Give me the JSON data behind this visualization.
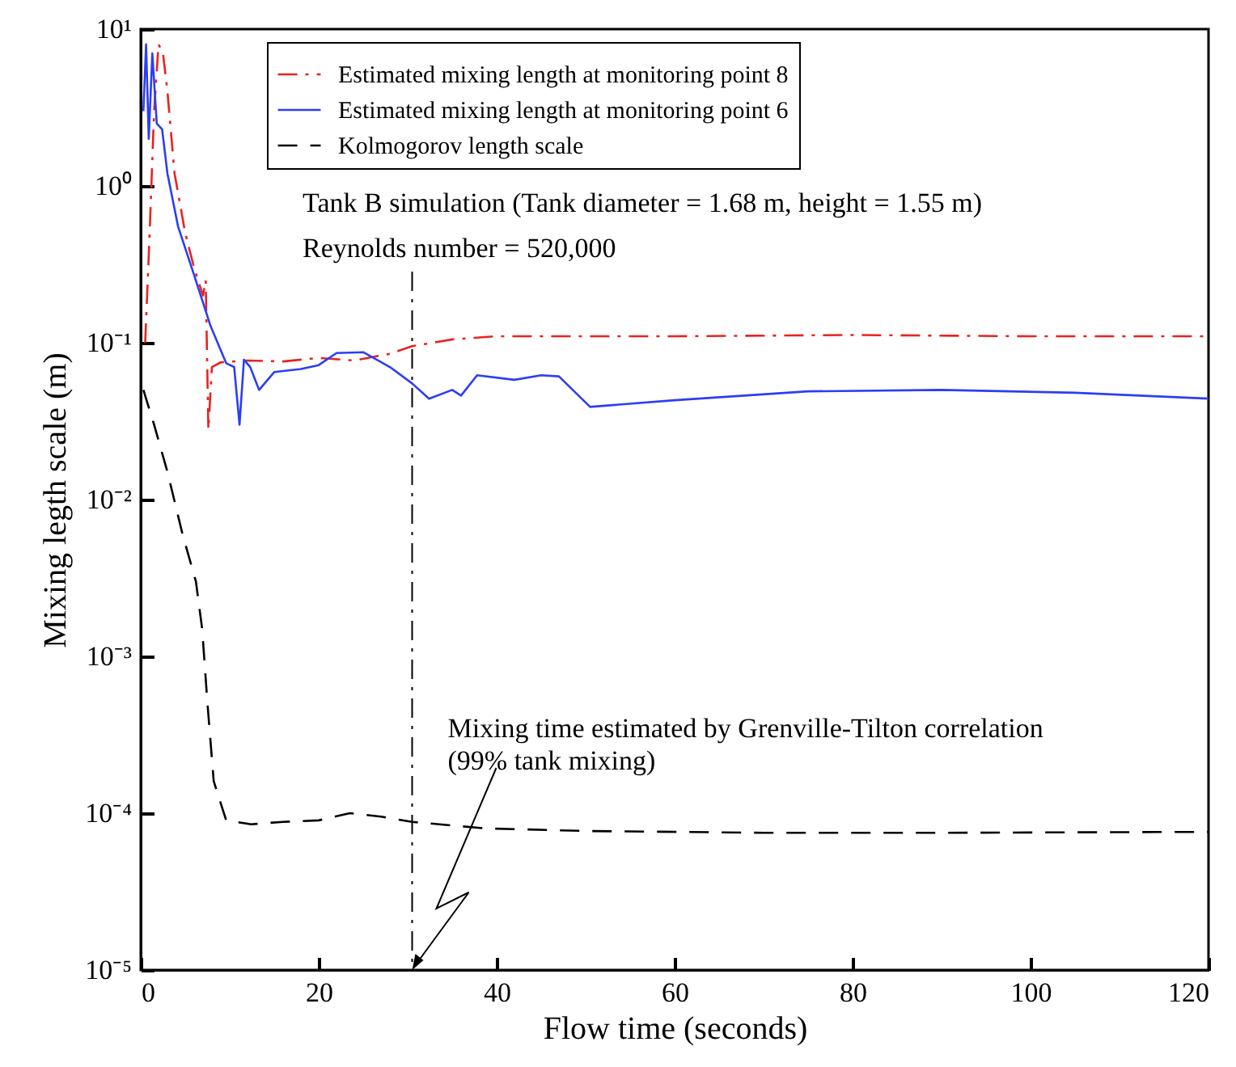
{
  "chart_data": {
    "type": "line",
    "xlabel": "Flow time (seconds)",
    "ylabel": "Mixing legth scale (m)",
    "log": true,
    "xlim": [
      0,
      120
    ],
    "ylim": [
      1e-05,
      10
    ],
    "xticks": [
      0,
      20,
      40,
      60,
      80,
      100,
      120
    ],
    "yticks": [
      {
        "value": 1e-05,
        "label": "10⁻⁵"
      },
      {
        "value": 0.0001,
        "label": "10⁻⁴"
      },
      {
        "value": 0.001,
        "label": "10⁻³"
      },
      {
        "value": 0.01,
        "label": "10⁻²"
      },
      {
        "value": 0.1,
        "label": "10⁻¹"
      },
      {
        "value": 1,
        "label": "10⁰"
      },
      {
        "value": 10,
        "label": "10¹"
      }
    ],
    "legend": "top",
    "grid": false,
    "series": [
      {
        "name": "Estimated mixing length at monitoring point 8",
        "color": "#e8231f",
        "line_style": "dashdot",
        "x": [
          0.5,
          1,
          1.5,
          2,
          2.5,
          3,
          3.8,
          5,
          6,
          7,
          7.3,
          7.6,
          8,
          9,
          12,
          16,
          20,
          24,
          28,
          30.5,
          35,
          40,
          60,
          80,
          100,
          120
        ],
        "values": [
          0.1,
          0.5,
          3,
          8,
          7,
          4,
          1.2,
          0.5,
          0.3,
          0.2,
          0.25,
          0.028,
          0.07,
          0.075,
          0.077,
          0.076,
          0.08,
          0.077,
          0.085,
          0.095,
          0.105,
          0.11,
          0.11,
          0.112,
          0.11,
          0.11
        ]
      },
      {
        "name": "Estimated mixing length at monitoring point 6",
        "color": "#2b3ef5",
        "line_style": "solid",
        "x": [
          0.3,
          0.6,
          0.9,
          1.3,
          1.8,
          2.4,
          3,
          4.2,
          6,
          7.8,
          9.6,
          10.5,
          11.1,
          11.6,
          12.3,
          13.3,
          15,
          18,
          20,
          22,
          25,
          28,
          30.5,
          32.4,
          35,
          36,
          37.8,
          42,
          45,
          47,
          50.5,
          60,
          75,
          90,
          105,
          120
        ],
        "values": [
          3,
          8,
          2,
          7,
          2.5,
          2.3,
          1.2,
          0.55,
          0.27,
          0.13,
          0.074,
          0.07,
          0.03,
          0.078,
          0.07,
          0.05,
          0.065,
          0.068,
          0.072,
          0.086,
          0.087,
          0.07,
          0.055,
          0.044,
          0.05,
          0.046,
          0.062,
          0.058,
          0.062,
          0.061,
          0.039,
          0.043,
          0.049,
          0.05,
          0.048,
          0.044
        ]
      },
      {
        "name": "Kolmogorov length scale",
        "color": "#000000",
        "line_style": "dashed",
        "x": [
          0.3,
          1.5,
          3,
          4.7,
          6.2,
          6.9,
          7.5,
          8.2,
          9.6,
          12.4,
          16,
          20,
          23.5,
          27,
          30.5,
          38.7,
          50,
          70,
          90,
          120
        ],
        "values": [
          0.05,
          0.03,
          0.015,
          0.006,
          0.003,
          0.0015,
          0.0005,
          0.00016,
          9e-05,
          8.5e-05,
          8.8e-05,
          9e-05,
          0.0001,
          9.5e-05,
          8.8e-05,
          8e-05,
          7.7e-05,
          7.5e-05,
          7.5e-05,
          7.6e-05
        ]
      }
    ],
    "ref_lines": [
      {
        "axis": "x",
        "value": 30.5,
        "label": null,
        "color": "#000000",
        "line_style": "dashdot"
      }
    ],
    "annotations": [
      "Tank B simulation (Tank diameter = 1.68 m, height = 1.55 m)",
      "Reynolds number = 520,000",
      {
        "text": "Mixing time estimated by Grenville-Tilton correlation\n(99% tank mixing)",
        "x": 30.5,
        "y": 1e-05
      }
    ]
  }
}
